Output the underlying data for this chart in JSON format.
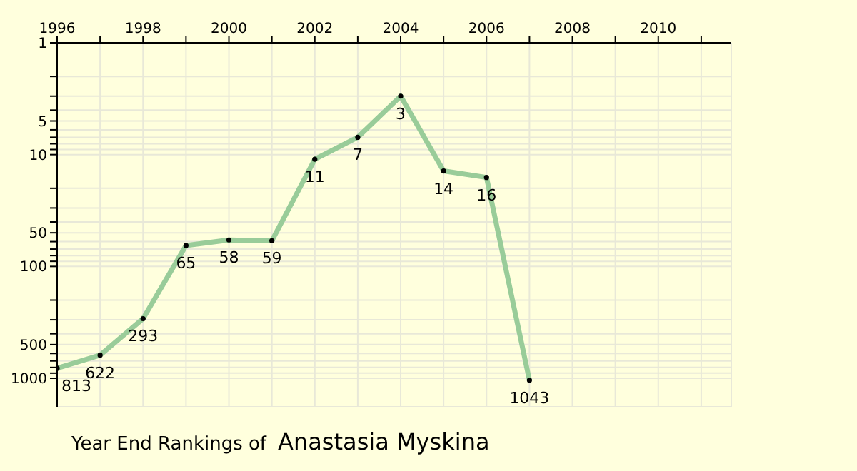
{
  "chart_data": {
    "type": "line",
    "title": "Year End Rankings of",
    "subtitle": "Anastasia Myskina",
    "x": [
      1996,
      1997,
      1998,
      1999,
      2000,
      2001,
      2002,
      2003,
      2004,
      2005,
      2006,
      2007
    ],
    "series": [
      {
        "color": "#99cc99",
        "values": [
          813,
          622,
          293,
          65,
          58,
          59,
          11,
          7,
          3,
          14,
          16,
          1043
        ]
      }
    ],
    "data_labels": true,
    "marker": "circle",
    "line_style": "solid",
    "grid": true,
    "log": "y",
    "xlim": [
      1996,
      2011.7
    ],
    "xticks": [
      1996,
      {
        "value": 1997,
        "label": null
      },
      1998,
      {
        "value": 1999,
        "label": null
      },
      2000,
      {
        "value": 2001,
        "label": null
      },
      2002,
      {
        "value": 2003,
        "label": null
      },
      2004,
      {
        "value": 2005,
        "label": null
      },
      2006,
      {
        "value": 2007,
        "label": null
      },
      2008,
      {
        "value": 2009,
        "label": null
      },
      2010,
      {
        "value": 2011,
        "label": null
      }
    ],
    "ylim": [
      1800,
      1
    ],
    "yticks": [
      1,
      {
        "value": 2,
        "label": null
      },
      {
        "value": 3,
        "label": null
      },
      {
        "value": 4,
        "label": null
      },
      5,
      {
        "value": 6,
        "label": null
      },
      {
        "value": 7,
        "label": null
      },
      {
        "value": 8,
        "label": null
      },
      {
        "value": 9,
        "label": null
      },
      10,
      {
        "value": 20,
        "label": null
      },
      {
        "value": 30,
        "label": null
      },
      {
        "value": 40,
        "label": null
      },
      50,
      {
        "value": 60,
        "label": null
      },
      {
        "value": 70,
        "label": null
      },
      {
        "value": 80,
        "label": null
      },
      {
        "value": 90,
        "label": null
      },
      100,
      {
        "value": 200,
        "label": null
      },
      {
        "value": 300,
        "label": null
      },
      {
        "value": 400,
        "label": null
      },
      500,
      {
        "value": 600,
        "label": null
      },
      {
        "value": 700,
        "label": null
      },
      {
        "value": 800,
        "label": null
      },
      {
        "value": 900,
        "label": null
      },
      1000
    ]
  }
}
